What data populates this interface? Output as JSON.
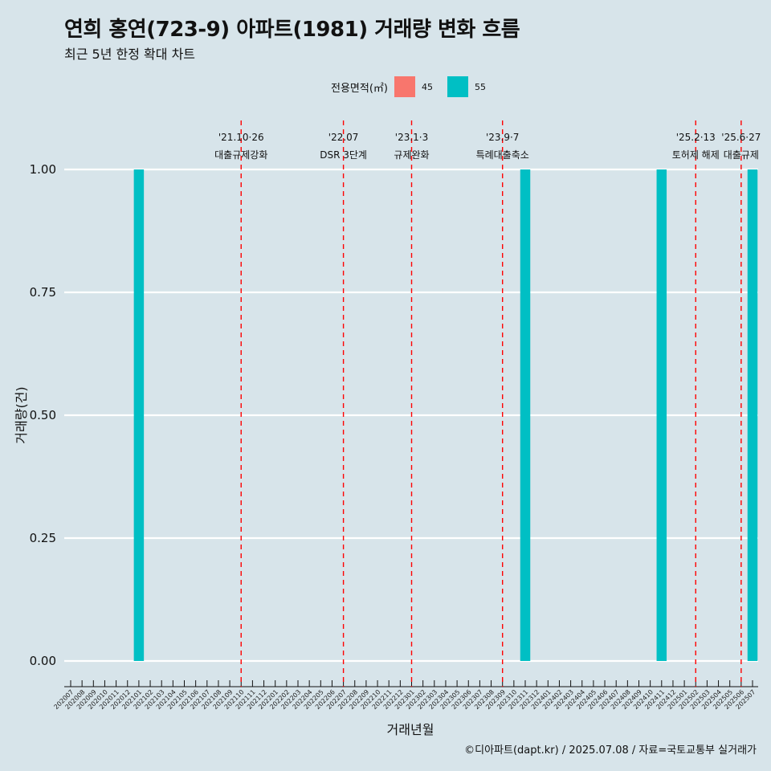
{
  "title": "연희 홍연(723-9) 아파트(1981) 거래량 변화 흐름",
  "subtitle": "최근 5년 한정 확대 차트",
  "caption": "©디아파트(dapt.kr) / 2025.07.08 / 자료=국토교통부 실거래가",
  "legend": {
    "title": "전용면적(㎡)",
    "items": [
      {
        "label": "45",
        "color": "#f8766d"
      },
      {
        "label": "55",
        "color": "#00bfc4"
      }
    ]
  },
  "chart_data": {
    "type": "bar",
    "xlabel": "거래년월",
    "ylabel": "거래량(건)",
    "ylim": [
      0,
      1
    ],
    "yticks": [
      "0.00",
      "0.25",
      "0.50",
      "0.75",
      "1.00"
    ],
    "grid": true,
    "categories": [
      "202007",
      "202008",
      "202009",
      "202010",
      "202011",
      "202012",
      "202101",
      "202102",
      "202103",
      "202104",
      "202105",
      "202106",
      "202107",
      "202108",
      "202109",
      "202110",
      "202111",
      "202112",
      "202201",
      "202202",
      "202203",
      "202204",
      "202205",
      "202206",
      "202207",
      "202208",
      "202209",
      "202210",
      "202211",
      "202212",
      "202301",
      "202302",
      "202303",
      "202304",
      "202305",
      "202306",
      "202307",
      "202308",
      "202309",
      "202310",
      "202311",
      "202312",
      "202401",
      "202402",
      "202403",
      "202404",
      "202405",
      "202406",
      "202407",
      "202408",
      "202409",
      "202410",
      "202411",
      "202412",
      "202501",
      "202502",
      "202503",
      "202504",
      "202505",
      "202506",
      "202507"
    ],
    "series": [
      {
        "name": "45",
        "color": "#f8766d",
        "values": [
          0,
          0,
          0,
          0,
          0,
          0,
          0,
          0,
          0,
          0,
          0,
          0,
          0,
          0,
          0,
          0,
          0,
          0,
          0,
          0,
          0,
          0,
          0,
          0,
          0,
          0,
          0,
          0,
          0,
          0,
          0,
          0,
          0,
          0,
          0,
          0,
          0,
          0,
          0,
          0,
          0,
          0,
          0,
          0,
          0,
          0,
          0,
          0,
          0,
          0,
          0,
          0,
          0,
          0,
          0,
          0,
          0,
          0,
          0,
          0,
          0
        ]
      },
      {
        "name": "55",
        "color": "#00bfc4",
        "values": [
          0,
          0,
          0,
          0,
          0,
          0,
          1,
          0,
          0,
          0,
          0,
          0,
          0,
          0,
          0,
          0,
          0,
          0,
          0,
          0,
          0,
          0,
          0,
          0,
          0,
          0,
          0,
          0,
          0,
          0,
          0,
          0,
          0,
          0,
          0,
          0,
          0,
          0,
          0,
          0,
          1,
          0,
          0,
          0,
          0,
          0,
          0,
          0,
          0,
          0,
          0,
          0,
          1,
          0,
          0,
          0,
          0,
          0,
          0,
          0,
          1
        ]
      }
    ],
    "events": [
      {
        "month": "202110",
        "date": "'21.10·26",
        "label": "대출규제강화"
      },
      {
        "month": "202207",
        "date": "'22.07",
        "label": "DSR 3단계"
      },
      {
        "month": "202301",
        "date": "'23.1·3",
        "label": "규제완화"
      },
      {
        "month": "202309",
        "date": "'23.9·7",
        "label": "특례대출축소"
      },
      {
        "month": "202502",
        "date": "'25.2·13",
        "label": "토허제 해제"
      },
      {
        "month": "202506",
        "date": "'25.6·27",
        "label": "대출규제"
      }
    ]
  }
}
